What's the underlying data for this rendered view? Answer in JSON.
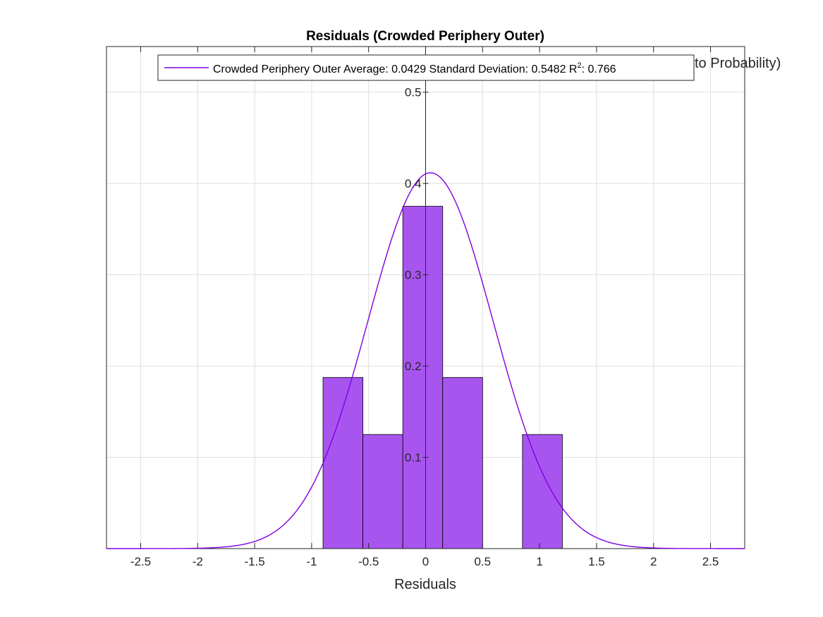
{
  "chart_data": {
    "type": "bar",
    "title": "Residuals (Crowded Periphery Outer)",
    "xlabel": "Residuals",
    "ylabel_fragment": "to Probability)",
    "xlim": [
      -2.8,
      2.8
    ],
    "ylim": [
      0,
      0.55
    ],
    "xticks": [
      -2.5,
      -2,
      -1.5,
      -1,
      -0.5,
      0,
      0.5,
      1,
      1.5,
      2,
      2.5
    ],
    "xtick_labels": [
      "-2.5",
      "-2",
      "-1.5",
      "-1",
      "-0.5",
      "0",
      "0.5",
      "1",
      "1.5",
      "2",
      "2.5"
    ],
    "yticks": [
      0.1,
      0.2,
      0.3,
      0.4,
      0.5
    ],
    "ytick_labels": [
      "0.1",
      "0.2",
      "0.3",
      "0.4",
      "0.5"
    ],
    "grid": true,
    "legend_placement": "top",
    "bins": [
      {
        "x0": -0.9,
        "x1": -0.55,
        "value": 0.1875
      },
      {
        "x0": -0.55,
        "x1": -0.2,
        "value": 0.125
      },
      {
        "x0": -0.2,
        "x1": 0.15,
        "value": 0.375
      },
      {
        "x0": 0.15,
        "x1": 0.5,
        "value": 0.1875
      },
      {
        "x0": 0.5,
        "x1": 0.85,
        "value": 0
      },
      {
        "x0": 0.85,
        "x1": 1.2,
        "value": 0.125
      }
    ],
    "bar_color": "#a855f0",
    "bar_edge_color": "#000000",
    "curve": {
      "mean": 0.0429,
      "std": 0.5482,
      "peak": 0.4117,
      "color": "#7f00e0"
    },
    "legend": {
      "text_main": "Crowded Periphery Outer Average: 0.0429 Standard Deviation: 0.5482 R",
      "superscript": "2",
      "text_end": ": 0.766"
    }
  }
}
